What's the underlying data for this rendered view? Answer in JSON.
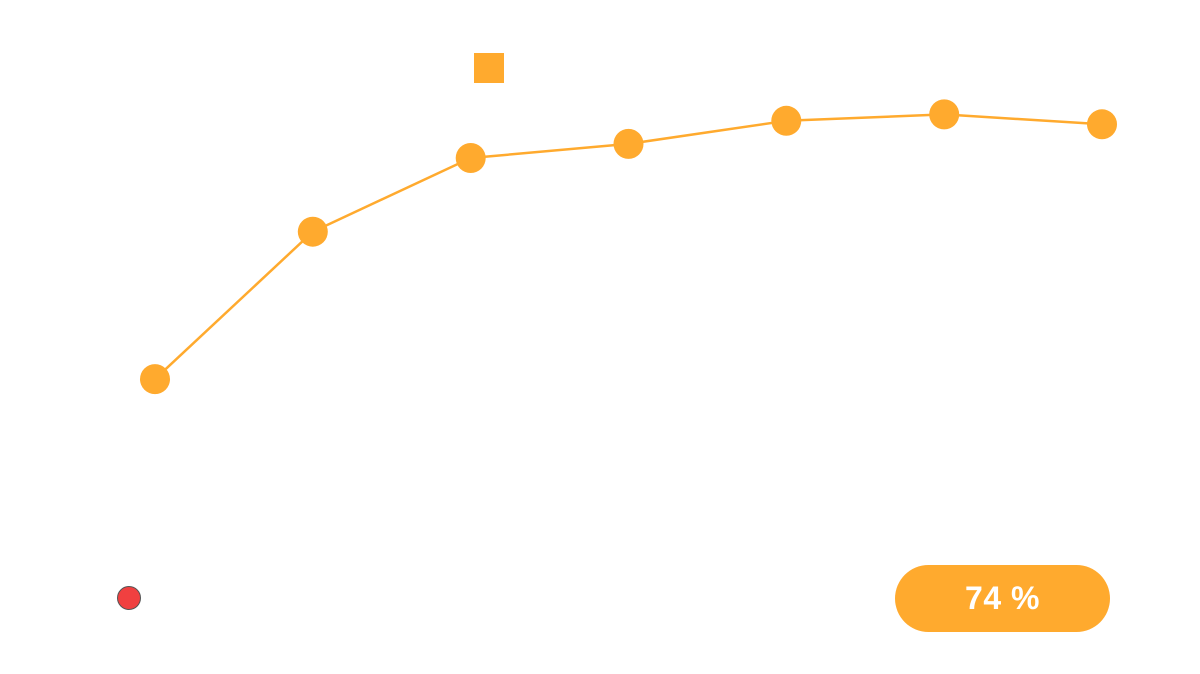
{
  "colors": {
    "series": "#FFAA2E",
    "status_dot": "#F04040",
    "badge_bg": "#FFAA2E",
    "badge_text": "#FFFFFF"
  },
  "chart_data": {
    "type": "line",
    "x": [
      1,
      2,
      3,
      4,
      5,
      6,
      7
    ],
    "series": [
      {
        "values": [
          40.0,
          61.0,
          71.5,
          73.5,
          76.8,
          77.7,
          76.3
        ]
      }
    ],
    "ylim": [
      0,
      94
    ],
    "grid": false,
    "markers": "circle",
    "legend": "top-center"
  },
  "badge": {
    "text": "74 %",
    "value_percent": 74
  },
  "icons": {
    "legend_marker": "square-swatch",
    "status": "red-dot-icon"
  }
}
